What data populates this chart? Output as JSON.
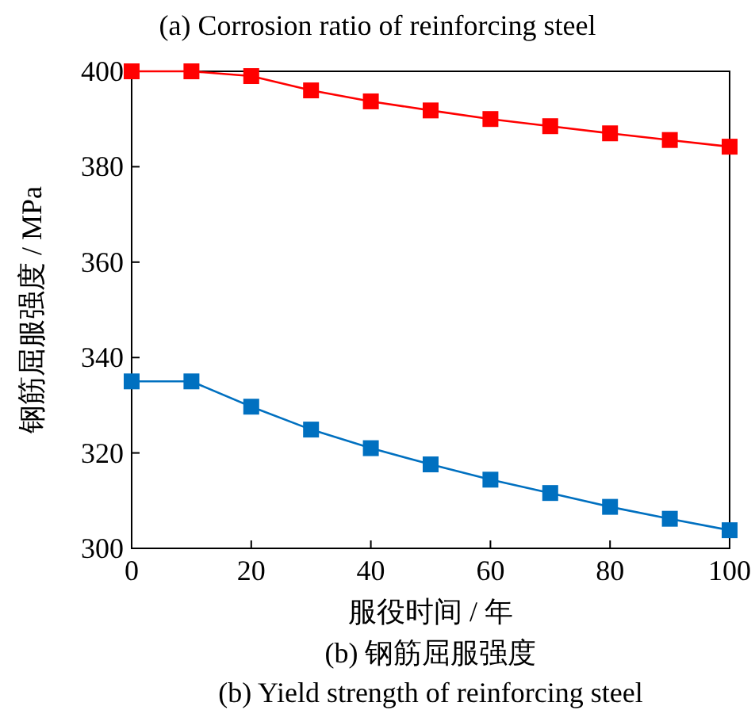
{
  "chart_data": {
    "type": "line",
    "title": "(b) 钢筋屈服强度",
    "subtitle": "(b) Yield strength of reinforcing steel",
    "xlabel": "服役时间 / 年",
    "ylabel": "钢筋屈服强度 / MPa",
    "annotations": [
      "(a) Corrosion ratio of reinforcing steel"
    ],
    "x": [
      0,
      10,
      20,
      30,
      40,
      50,
      60,
      70,
      80,
      90,
      100
    ],
    "series": [
      {
        "color": "#ff0000",
        "values": [
          400,
          400,
          399,
          396,
          393.7,
          391.8,
          390,
          388.5,
          387,
          385.6,
          384.2
        ]
      },
      {
        "color": "#0070c0",
        "values": [
          335,
          335,
          329.7,
          324.9,
          321,
          317.6,
          314.4,
          311.6,
          308.7,
          306.2,
          303.8
        ]
      }
    ],
    "xlim": [
      0,
      100
    ],
    "xticks": [
      0,
      20,
      40,
      60,
      80,
      100
    ],
    "ylim": [
      300,
      400
    ],
    "yticks": [
      300,
      320,
      340,
      360,
      380,
      400
    ],
    "marker": "square",
    "line_style": "solid"
  }
}
